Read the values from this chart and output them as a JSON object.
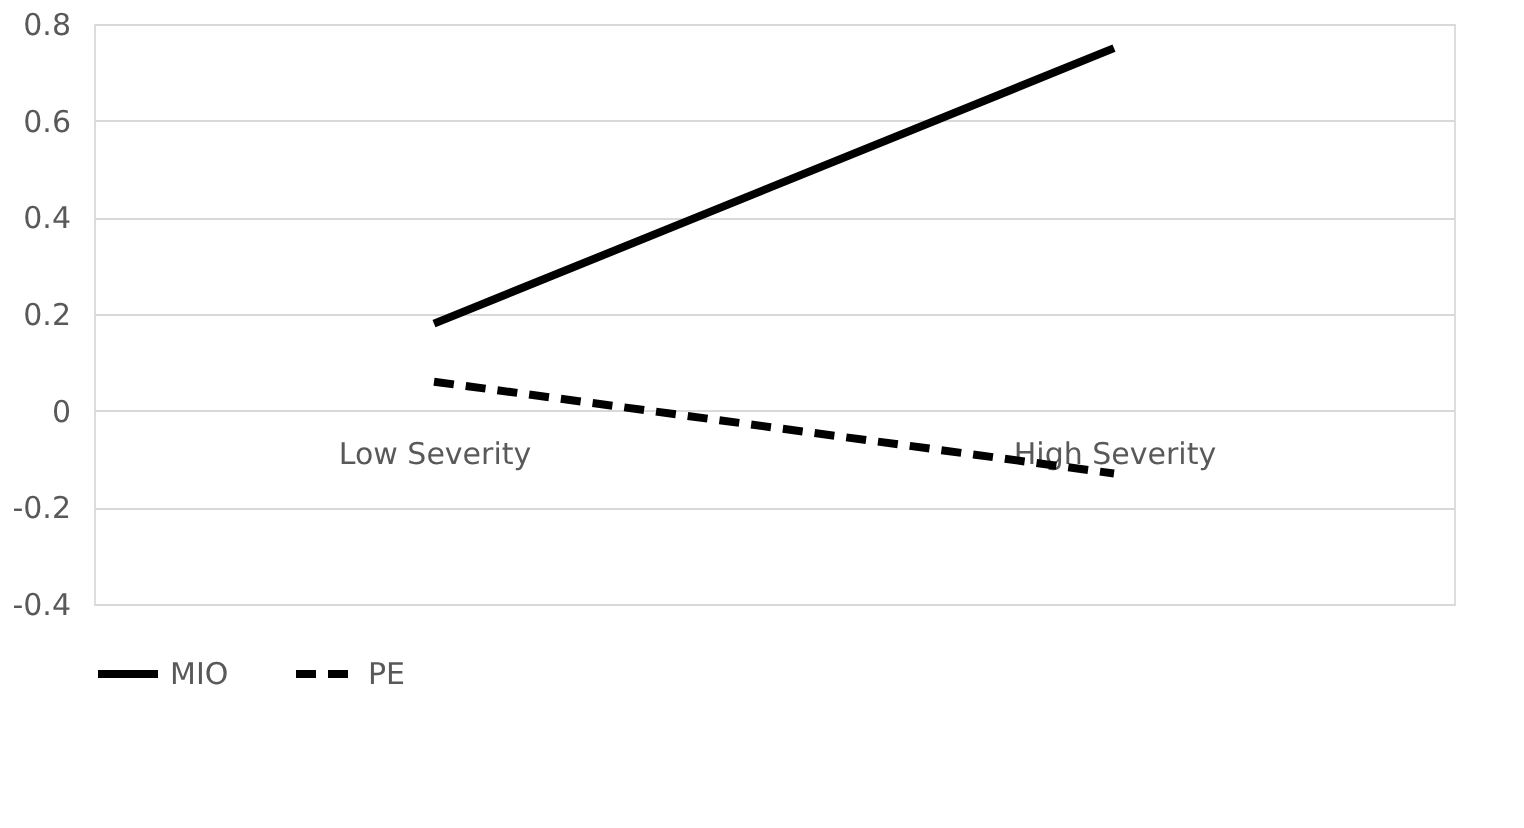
{
  "chart_data": {
    "type": "line",
    "categories": [
      "Low Severity",
      "High Severity"
    ],
    "series": [
      {
        "name": "MIO",
        "color": "#000000",
        "values": [
          0.18,
          0.75
        ],
        "line_style": "solid"
      },
      {
        "name": "PE",
        "color": "#000000",
        "values": [
          0.06,
          -0.13
        ],
        "line_style": "dashed"
      }
    ],
    "ylim": [
      -0.4,
      0.8
    ],
    "yticks": [
      -0.4,
      -0.2,
      0,
      0.2,
      0.4,
      0.6,
      0.8
    ],
    "grid": "y",
    "legend": "bottom",
    "marker": "none"
  }
}
